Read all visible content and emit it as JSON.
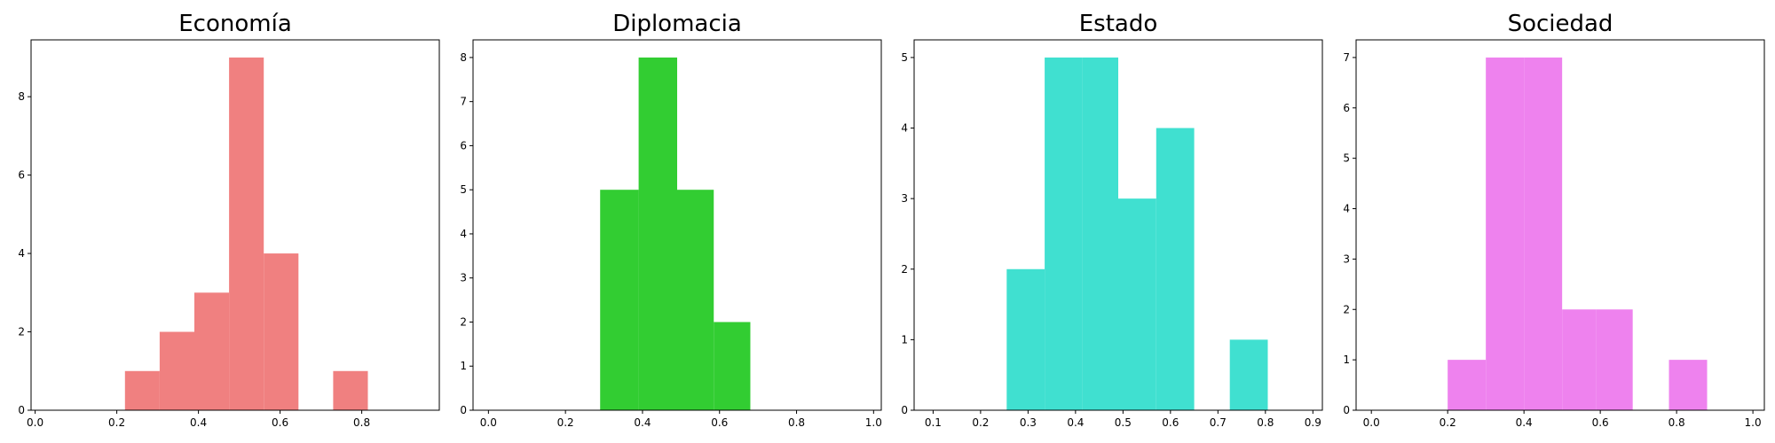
{
  "chart_data": [
    {
      "type": "bar",
      "title": "Economía",
      "color": "#f08080",
      "xlim": [
        -0.01,
        0.99
      ],
      "ylim": [
        0,
        9.45
      ],
      "xticks": [
        0.0,
        0.2,
        0.4,
        0.6,
        0.8
      ],
      "xtick_labels": [
        "0.0",
        "0.2",
        "0.4",
        "0.6",
        "0.8"
      ],
      "yticks": [
        0,
        2,
        4,
        6,
        8
      ],
      "ytick_labels": [
        "0",
        "2",
        "4",
        "6",
        "8"
      ],
      "bins": [
        [
          0.22,
          0.305,
          1
        ],
        [
          0.305,
          0.39,
          2
        ],
        [
          0.39,
          0.475,
          3
        ],
        [
          0.475,
          0.56,
          9
        ],
        [
          0.56,
          0.645,
          4
        ],
        [
          0.645,
          0.73,
          0
        ],
        [
          0.73,
          0.815,
          1
        ]
      ],
      "grid": false,
      "legend": "none"
    },
    {
      "type": "bar",
      "title": "Diplomacia",
      "color": "#32cd32",
      "xlim": [
        -0.04,
        1.02
      ],
      "ylim": [
        0,
        8.4
      ],
      "xticks": [
        0.0,
        0.2,
        0.4,
        0.6,
        0.8,
        1.0
      ],
      "xtick_labels": [
        "0.0",
        "0.2",
        "0.4",
        "0.6",
        "0.8",
        "1.0"
      ],
      "yticks": [
        0,
        1,
        2,
        3,
        4,
        5,
        6,
        7,
        8
      ],
      "ytick_labels": [
        "0",
        "1",
        "2",
        "3",
        "4",
        "5",
        "6",
        "7",
        "8"
      ],
      "bins": [
        [
          0.29,
          0.39,
          5
        ],
        [
          0.39,
          0.49,
          8
        ],
        [
          0.49,
          0.585,
          5
        ],
        [
          0.585,
          0.68,
          2
        ]
      ],
      "grid": false,
      "legend": "none"
    },
    {
      "type": "bar",
      "title": "Estado",
      "color": "#40e0d0",
      "xlim": [
        0.06,
        0.92
      ],
      "ylim": [
        0,
        5.25
      ],
      "xticks": [
        0.1,
        0.2,
        0.3,
        0.4,
        0.5,
        0.6,
        0.7,
        0.8,
        0.9
      ],
      "xtick_labels": [
        "0.1",
        "0.2",
        "0.3",
        "0.4",
        "0.5",
        "0.6",
        "0.7",
        "0.8",
        "0.9"
      ],
      "yticks": [
        0,
        1,
        2,
        3,
        4,
        5
      ],
      "ytick_labels": [
        "0",
        "1",
        "2",
        "3",
        "4",
        "5"
      ],
      "bins": [
        [
          0.255,
          0.335,
          2
        ],
        [
          0.335,
          0.415,
          5
        ],
        [
          0.415,
          0.49,
          5
        ],
        [
          0.49,
          0.57,
          3
        ],
        [
          0.57,
          0.65,
          4
        ],
        [
          0.65,
          0.725,
          0
        ],
        [
          0.725,
          0.805,
          1
        ]
      ],
      "grid": false,
      "legend": "none"
    },
    {
      "type": "bar",
      "title": "Sociedad",
      "color": "#ee82ee",
      "xlim": [
        -0.04,
        1.03
      ],
      "ylim": [
        0,
        7.35
      ],
      "xticks": [
        0.0,
        0.2,
        0.4,
        0.6,
        0.8,
        1.0
      ],
      "xtick_labels": [
        "0.0",
        "0.2",
        "0.4",
        "0.6",
        "0.8",
        "1.0"
      ],
      "yticks": [
        0,
        1,
        2,
        3,
        4,
        5,
        6,
        7
      ],
      "ytick_labels": [
        "0",
        "1",
        "2",
        "3",
        "4",
        "5",
        "6",
        "7"
      ],
      "bins": [
        [
          0.2,
          0.3,
          1
        ],
        [
          0.3,
          0.4,
          7
        ],
        [
          0.4,
          0.5,
          7
        ],
        [
          0.5,
          0.59,
          2
        ],
        [
          0.59,
          0.685,
          2
        ],
        [
          0.685,
          0.78,
          0
        ],
        [
          0.78,
          0.88,
          1
        ]
      ],
      "grid": false,
      "legend": "none"
    }
  ]
}
